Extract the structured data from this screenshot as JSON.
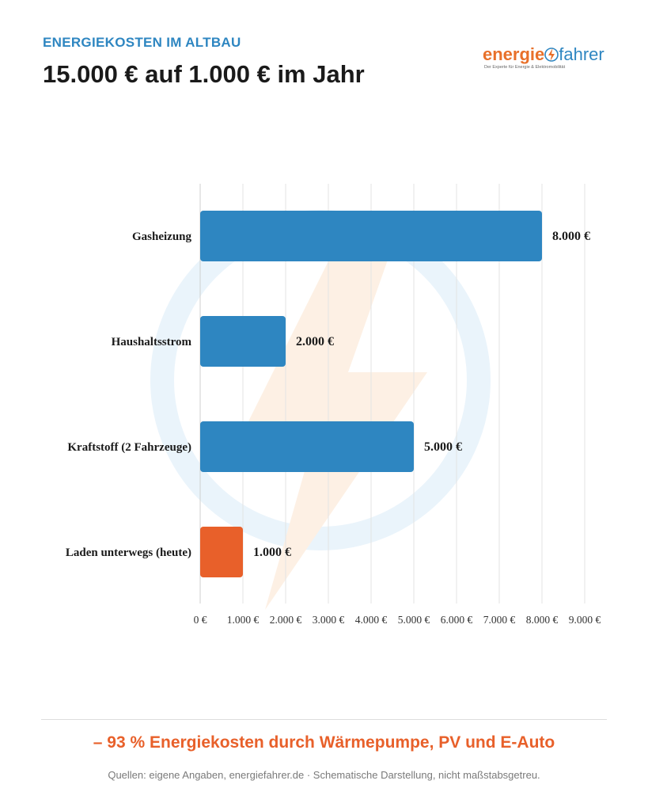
{
  "header": {
    "kicker": "ENERGIEKOSTEN IM ALTBAU",
    "title": "15.000 € auf 1.000 € im Jahr"
  },
  "logo": {
    "word_a": "energie",
    "word_b": "fahrer",
    "tagline": "Der Experte für Energie & Elektromobilität",
    "icon": "lightning-bolt-icon"
  },
  "colors": {
    "primary": "#2e86c1",
    "accent": "#e8602a",
    "watermark_blue": "#eaf4fb",
    "watermark_orange": "#fdf0e4"
  },
  "chart_data": {
    "type": "bar",
    "orientation": "horizontal",
    "categories": [
      "Gasheizung",
      "Haushaltsstrom",
      "Kraftstoff (2 Fahrzeuge)",
      "Laden unterwegs (heute)"
    ],
    "values": [
      8000,
      2000,
      5000,
      1000
    ],
    "value_labels": [
      "8.000 €",
      "2.000 €",
      "5.000 €",
      "1.000 €"
    ],
    "bar_colors": [
      "#2e86c1",
      "#2e86c1",
      "#2e86c1",
      "#e8602a"
    ],
    "xlim": [
      0,
      9000
    ],
    "xticks": [
      0,
      1000,
      2000,
      3000,
      4000,
      5000,
      6000,
      7000,
      8000,
      9000
    ],
    "xtick_labels": [
      "0 €",
      "1.000 €",
      "2.000 €",
      "3.000 €",
      "4.000 €",
      "5.000 €",
      "6.000 €",
      "7.000 €",
      "8.000 €",
      "9.000 €"
    ],
    "grid": true
  },
  "footer": {
    "headline": "– 93 % Energiekosten durch Wärmepumpe, PV und E-Auto",
    "note": "Quellen: eigene Angaben, energiefahrer.de · Schematische Darstellung, nicht maßstabsgetreu."
  }
}
